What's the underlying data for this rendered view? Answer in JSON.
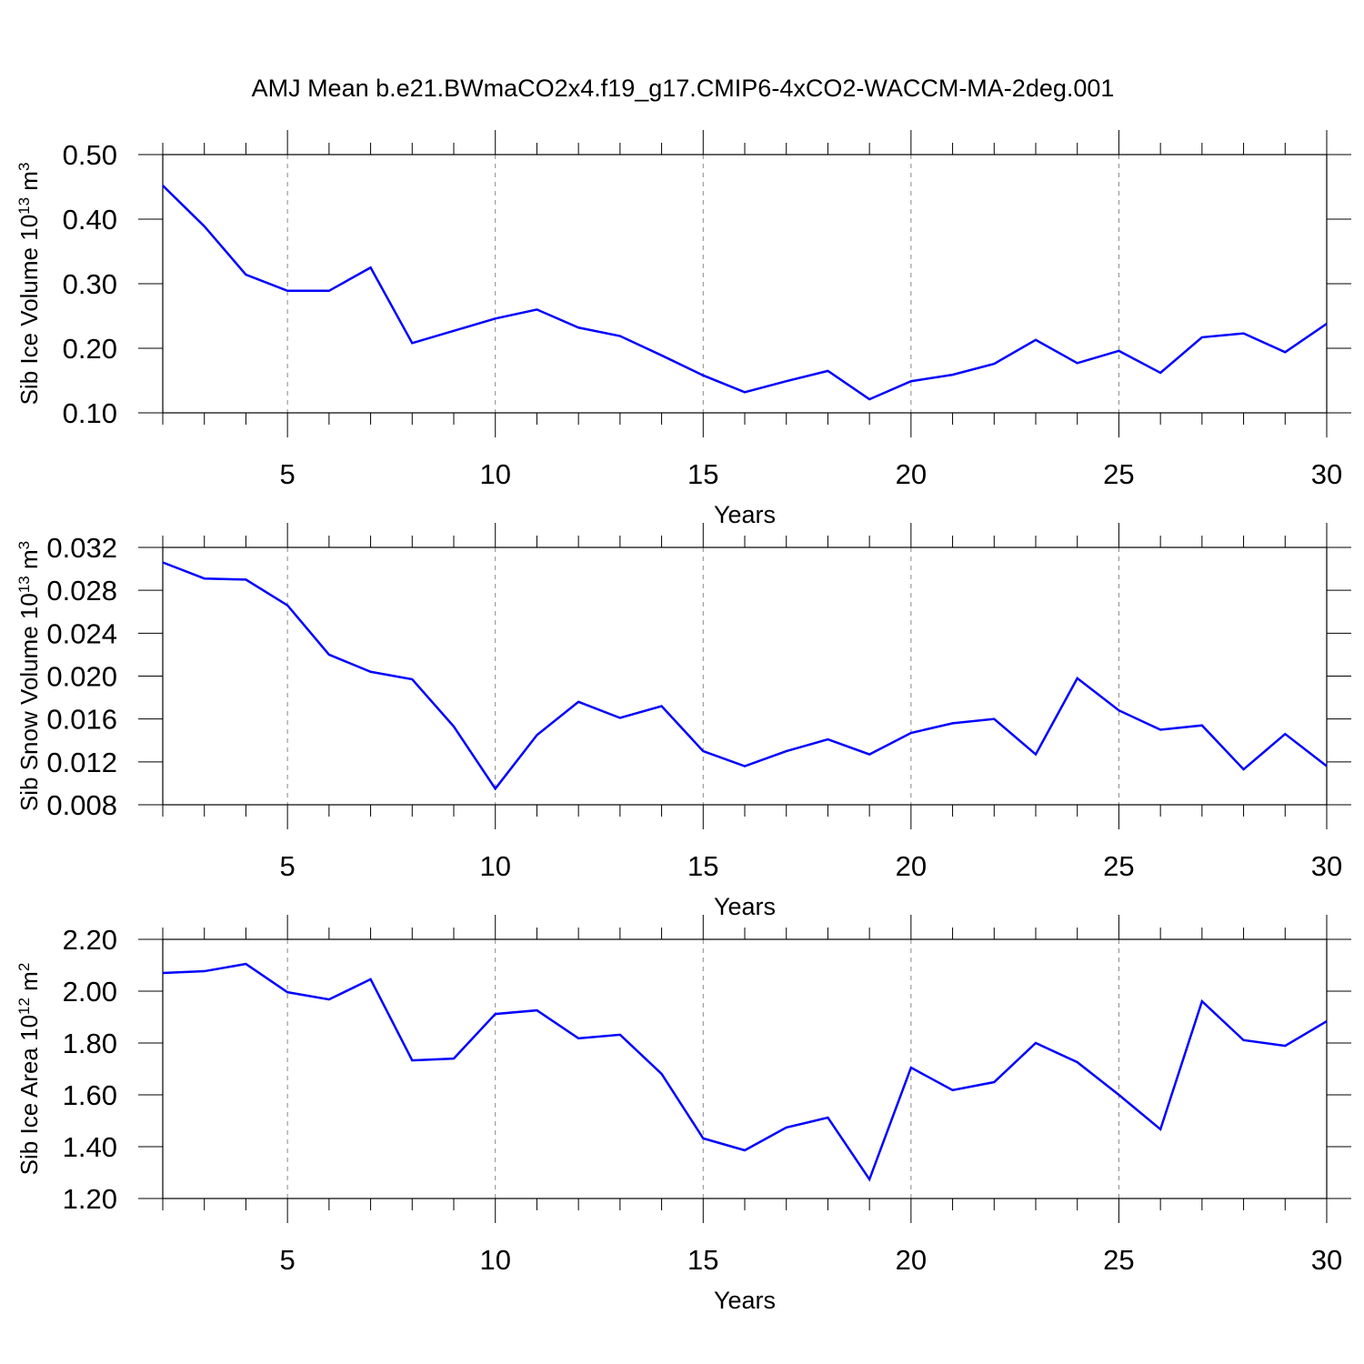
{
  "chart_data": [
    {
      "type": "line",
      "title": "AMJ Mean b.e21.BWmaCO2x4.f19_g17.CMIP6-4xCO2-WACCM-MA-2deg.001",
      "ylabel": [
        "Sib Ice Volume 10",
        "13",
        " m",
        "3"
      ],
      "xlabel": "Years",
      "x": [
        2,
        3,
        4,
        5,
        6,
        7,
        8,
        9,
        10,
        11,
        12,
        13,
        14,
        15,
        16,
        17,
        18,
        19,
        20,
        21,
        22,
        23,
        24,
        25,
        26,
        27,
        28,
        29,
        30
      ],
      "series": [
        {
          "color": "#0000ff",
          "values": [
            0.452,
            0.389,
            0.314,
            0.289,
            0.289,
            0.325,
            0.208,
            0.227,
            0.246,
            0.26,
            0.232,
            0.219,
            0.189,
            0.158,
            0.132,
            0.149,
            0.165,
            0.121,
            0.149,
            0.159,
            0.176,
            0.213,
            0.177,
            0.196,
            0.162,
            0.217,
            0.223,
            0.194,
            0.238
          ]
        }
      ],
      "xlim": [
        2,
        30
      ],
      "xticks": [
        5,
        10,
        15,
        20,
        25,
        30
      ],
      "xminorticks": [
        2,
        3,
        4,
        6,
        7,
        8,
        9,
        11,
        12,
        13,
        14,
        16,
        17,
        18,
        19,
        21,
        22,
        23,
        24,
        26,
        27,
        28,
        29
      ],
      "ylim": [
        0.1,
        0.5
      ],
      "yticks": [
        {
          "value": 0.5,
          "label": "0.50"
        },
        {
          "value": 0.4,
          "label": "0.40"
        },
        {
          "value": 0.3,
          "label": "0.30"
        },
        {
          "value": 0.2,
          "label": "0.20"
        },
        {
          "value": 0.1,
          "label": "0.10"
        }
      ],
      "grid": true
    },
    {
      "type": "line",
      "ylabel": [
        "Sib Snow Volume 10",
        "13",
        " m",
        "3"
      ],
      "xlabel": "Years",
      "x": [
        2,
        3,
        4,
        5,
        6,
        7,
        8,
        9,
        10,
        11,
        12,
        13,
        14,
        15,
        16,
        17,
        18,
        19,
        20,
        21,
        22,
        23,
        24,
        25,
        26,
        27,
        28,
        29,
        30
      ],
      "series": [
        {
          "color": "#0000ff",
          "values": [
            0.0306,
            0.0291,
            0.029,
            0.0266,
            0.022,
            0.0204,
            0.0197,
            0.0153,
            0.0095,
            0.0145,
            0.0176,
            0.0161,
            0.0172,
            0.013,
            0.0116,
            0.013,
            0.0141,
            0.0127,
            0.0147,
            0.0156,
            0.016,
            0.0127,
            0.0198,
            0.0168,
            0.015,
            0.0154,
            0.0113,
            0.0146,
            0.0116
          ]
        }
      ],
      "xlim": [
        2,
        30
      ],
      "xticks": [
        5,
        10,
        15,
        20,
        25,
        30
      ],
      "xminorticks": [
        2,
        3,
        4,
        6,
        7,
        8,
        9,
        11,
        12,
        13,
        14,
        16,
        17,
        18,
        19,
        21,
        22,
        23,
        24,
        26,
        27,
        28,
        29
      ],
      "ylim": [
        0.008,
        0.032
      ],
      "yticks": [
        0.032,
        0.028,
        0.024,
        {
          "value": 0.02,
          "label": "0.020"
        },
        0.016,
        0.012,
        0.008
      ],
      "grid": true
    },
    {
      "type": "line",
      "ylabel": [
        "Sib Ice Area 10",
        "12",
        " m",
        "2"
      ],
      "xlabel": "Years",
      "x": [
        2,
        3,
        4,
        5,
        6,
        7,
        8,
        9,
        10,
        11,
        12,
        13,
        14,
        15,
        16,
        17,
        18,
        19,
        20,
        21,
        22,
        23,
        24,
        25,
        26,
        27,
        28,
        29,
        30
      ],
      "series": [
        {
          "color": "#0000ff",
          "values": [
            2.07,
            2.077,
            2.105,
            1.996,
            1.968,
            2.046,
            1.733,
            1.74,
            1.912,
            1.926,
            1.818,
            1.832,
            1.681,
            1.432,
            1.386,
            1.474,
            1.512,
            1.274,
            1.705,
            1.618,
            1.649,
            1.8,
            1.726,
            1.6,
            1.467,
            1.961,
            1.811,
            1.789,
            1.884
          ]
        }
      ],
      "xlim": [
        2,
        30
      ],
      "xticks": [
        5,
        10,
        15,
        20,
        25,
        30
      ],
      "xminorticks": [
        2,
        3,
        4,
        6,
        7,
        8,
        9,
        11,
        12,
        13,
        14,
        16,
        17,
        18,
        19,
        21,
        22,
        23,
        24,
        26,
        27,
        28,
        29
      ],
      "ylim": [
        1.2,
        2.2
      ],
      "yticks": [
        {
          "value": 2.2,
          "label": "2.20"
        },
        {
          "value": 2.0,
          "label": "2.00"
        },
        {
          "value": 1.8,
          "label": "1.80"
        },
        {
          "value": 1.6,
          "label": "1.60"
        },
        {
          "value": 1.4,
          "label": "1.40"
        },
        {
          "value": 1.2,
          "label": "1.20"
        }
      ],
      "grid": true
    }
  ]
}
